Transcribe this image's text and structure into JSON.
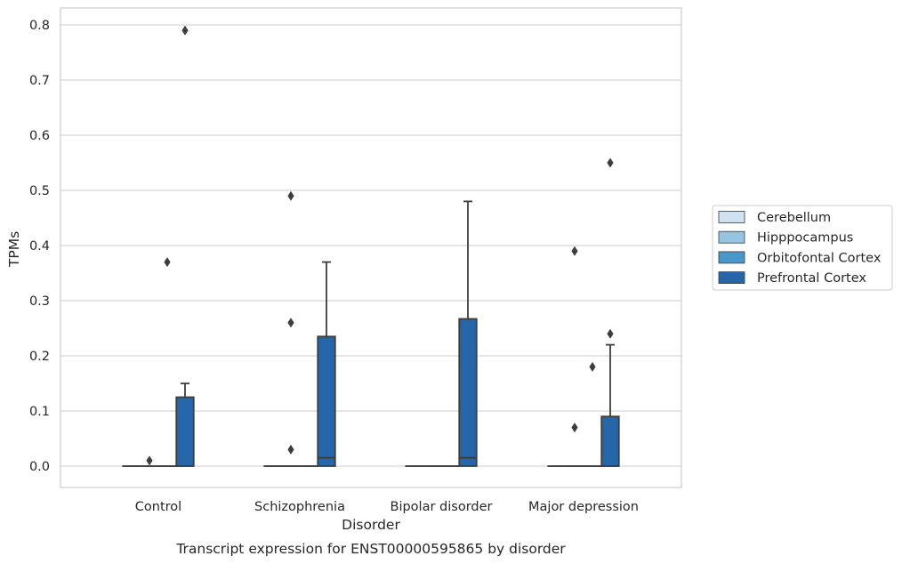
{
  "chart_data": {
    "type": "box",
    "title": "",
    "caption": "Transcript expression for ENST00000595865 by disorder",
    "xlabel": "Disorder",
    "ylabel": "TPMs",
    "ylim": [
      -0.04,
      0.83
    ],
    "yticks": [
      0.0,
      0.1,
      0.2,
      0.3,
      0.4,
      0.5,
      0.6,
      0.7,
      0.8
    ],
    "ytick_labels": [
      "0.0",
      "0.1",
      "0.2",
      "0.3",
      "0.4",
      "0.5",
      "0.6",
      "0.7",
      "0.8"
    ],
    "grid": "horizontal",
    "legend_position": "right",
    "categories": [
      "Control",
      "Schizophrenia",
      "Bipolar disorder",
      "Major depression"
    ],
    "series": [
      {
        "name": "Cerebellum",
        "color": "#d0e1f2",
        "boxes": [
          {
            "whislo": 0,
            "q1": 0,
            "med": 0,
            "q3": 0,
            "whishi": 0,
            "fliers": []
          },
          {
            "whislo": 0,
            "q1": 0,
            "med": 0,
            "q3": 0,
            "whishi": 0,
            "fliers": []
          },
          {
            "whislo": 0,
            "q1": 0,
            "med": 0,
            "q3": 0,
            "whishi": 0,
            "fliers": []
          },
          {
            "whislo": 0,
            "q1": 0,
            "med": 0,
            "q3": 0,
            "whishi": 0,
            "fliers": []
          }
        ]
      },
      {
        "name": "Hipppocampus",
        "color": "#94c4df",
        "boxes": [
          {
            "whislo": 0,
            "q1": 0,
            "med": 0,
            "q3": 0,
            "whishi": 0,
            "fliers": [
              0.01
            ]
          },
          {
            "whislo": 0,
            "q1": 0,
            "med": 0,
            "q3": 0,
            "whishi": 0,
            "fliers": [
              0.03,
              0.26,
              0.49
            ]
          },
          {
            "whislo": 0,
            "q1": 0,
            "med": 0,
            "q3": 0,
            "whishi": 0,
            "fliers": []
          },
          {
            "whislo": 0,
            "q1": 0,
            "med": 0,
            "q3": 0,
            "whishi": 0,
            "fliers": [
              0.07,
              0.39
            ]
          }
        ]
      },
      {
        "name": "Orbitofontal Cortex",
        "color": "#4a98c9",
        "boxes": [
          {
            "whislo": 0,
            "q1": 0,
            "med": 0,
            "q3": 0,
            "whishi": 0,
            "fliers": [
              0.37
            ]
          },
          {
            "whislo": 0,
            "q1": 0,
            "med": 0,
            "q3": 0,
            "whishi": 0,
            "fliers": []
          },
          {
            "whislo": 0,
            "q1": 0,
            "med": 0,
            "q3": 0,
            "whishi": 0,
            "fliers": []
          },
          {
            "whislo": 0,
            "q1": 0,
            "med": 0,
            "q3": 0,
            "whishi": 0,
            "fliers": [
              0.18
            ]
          }
        ]
      },
      {
        "name": "Prefrontal Cortex",
        "color": "#2565a8",
        "boxes": [
          {
            "whislo": 0,
            "q1": 0,
            "med": 0,
            "q3": 0.125,
            "whishi": 0.15,
            "fliers": [
              0.79
            ]
          },
          {
            "whislo": 0,
            "q1": 0,
            "med": 0.015,
            "q3": 0.235,
            "whishi": 0.37,
            "fliers": []
          },
          {
            "whislo": 0,
            "q1": 0,
            "med": 0.015,
            "q3": 0.267,
            "whishi": 0.48,
            "fliers": []
          },
          {
            "whislo": 0,
            "q1": 0,
            "med": 0,
            "q3": 0.09,
            "whishi": 0.22,
            "fliers": [
              0.24,
              0.55
            ]
          }
        ]
      }
    ]
  }
}
